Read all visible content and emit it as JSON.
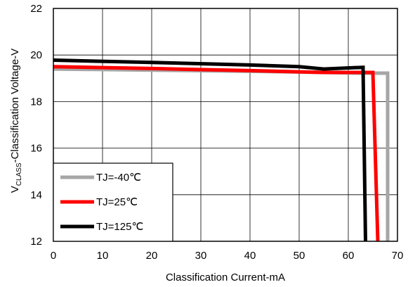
{
  "chart_data": {
    "type": "line",
    "xlabel": "Classification Current-mA",
    "ylabel": {
      "prefix": "V",
      "subscript": "CLASS",
      "suffix": "-Classification Voltage-V"
    },
    "xlim": [
      0,
      70
    ],
    "ylim": [
      12,
      22
    ],
    "xticks": [
      "0",
      "10",
      "20",
      "30",
      "40",
      "50",
      "60",
      "70"
    ],
    "yticks": [
      "12",
      "14",
      "16",
      "18",
      "20",
      "22"
    ],
    "grid": true,
    "legend_position": "bottom-left",
    "series": [
      {
        "name": "TJ=-40℃",
        "color": "#a6a6a6",
        "points": [
          [
            0,
            19.4
          ],
          [
            20,
            19.35
          ],
          [
            40,
            19.3
          ],
          [
            55,
            19.25
          ],
          [
            62,
            19.22
          ],
          [
            68,
            19.22
          ],
          [
            68,
            12
          ]
        ]
      },
      {
        "name": "TJ=25℃",
        "color": "#ff0000",
        "points": [
          [
            0,
            19.5
          ],
          [
            20,
            19.42
          ],
          [
            40,
            19.33
          ],
          [
            55,
            19.25
          ],
          [
            63,
            19.25
          ],
          [
            65,
            19.25
          ],
          [
            66,
            12
          ]
        ]
      },
      {
        "name": "TJ=125℃",
        "color": "#000000",
        "points": [
          [
            0,
            19.78
          ],
          [
            20,
            19.68
          ],
          [
            40,
            19.57
          ],
          [
            50,
            19.5
          ],
          [
            55,
            19.4
          ],
          [
            63,
            19.47
          ],
          [
            63.5,
            12
          ]
        ]
      }
    ]
  }
}
